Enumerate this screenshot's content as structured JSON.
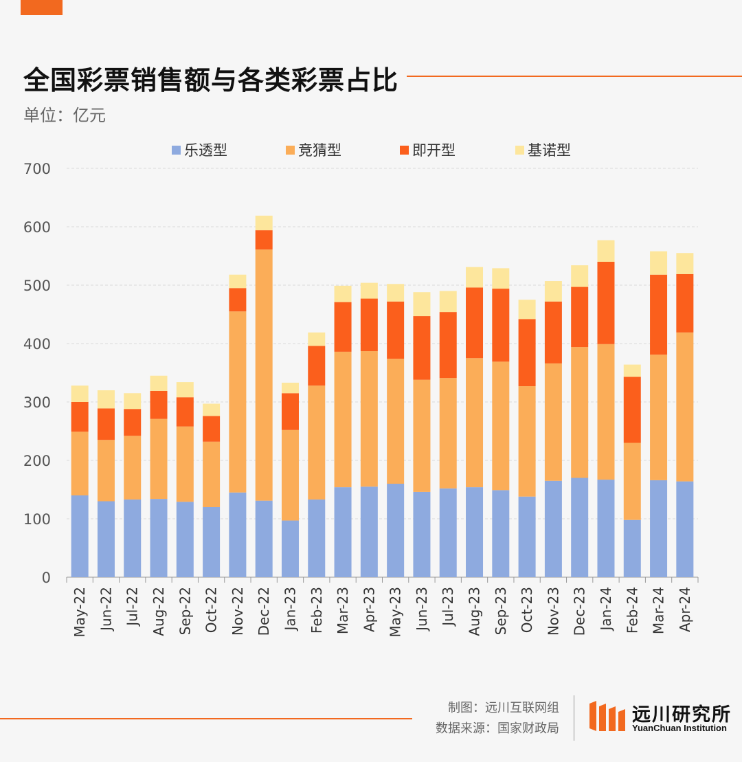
{
  "header": {
    "title": "全国彩票销售额与各类彩票占比",
    "unit": "单位：亿元"
  },
  "footer": {
    "credit_line1": "制图：远川互联网组",
    "credit_line2": "数据来源：国家财政局",
    "logo_cn": "远川研究所",
    "logo_en": "YuanChuan Institution"
  },
  "colors": {
    "accent": "#f2691f",
    "lotto": "#8eaadf",
    "sports": "#fbad58",
    "instant": "#fb5f1c",
    "keno": "#fde69c"
  },
  "chart_data": {
    "type": "bar",
    "stacked": true,
    "categories": [
      "May-22",
      "Jun-22",
      "Jul-22",
      "Aug-22",
      "Sep-22",
      "Oct-22",
      "Nov-22",
      "Dec-22",
      "Jan-23",
      "Feb-23",
      "Mar-23",
      "Apr-23",
      "May-23",
      "Jun-23",
      "Jul-23",
      "Aug-23",
      "Sep-23",
      "Oct-23",
      "Nov-23",
      "Dec-23",
      "Jan-24",
      "Feb-24",
      "Mar-24",
      "Apr-24"
    ],
    "series": [
      {
        "name": "乐透型",
        "color": "#8eaadf",
        "values": [
          140,
          130,
          133,
          134,
          129,
          120,
          145,
          131,
          97,
          133,
          154,
          155,
          160,
          146,
          152,
          154,
          149,
          138,
          165,
          170,
          167,
          98,
          166,
          164
        ]
      },
      {
        "name": "竞猜型",
        "color": "#fbad58",
        "values": [
          109,
          105,
          109,
          137,
          129,
          112,
          310,
          430,
          155,
          195,
          232,
          232,
          214,
          192,
          189,
          221,
          220,
          189,
          201,
          224,
          232,
          132,
          215,
          255
        ]
      },
      {
        "name": "即开型",
        "color": "#fb5f1c",
        "values": [
          51,
          54,
          46,
          48,
          50,
          44,
          40,
          33,
          63,
          68,
          85,
          90,
          98,
          109,
          113,
          121,
          125,
          115,
          106,
          103,
          141,
          113,
          137,
          100
        ]
      },
      {
        "name": "基诺型",
        "color": "#fde69c",
        "values": [
          28,
          31,
          27,
          26,
          26,
          21,
          23,
          25,
          18,
          23,
          28,
          27,
          30,
          41,
          36,
          35,
          35,
          33,
          35,
          37,
          37,
          21,
          40,
          36
        ]
      }
    ],
    "ylim": [
      0,
      700
    ],
    "yticks": [
      0,
      100,
      200,
      300,
      400,
      500,
      600,
      700
    ],
    "grid": true,
    "legend_position": "top-center"
  }
}
